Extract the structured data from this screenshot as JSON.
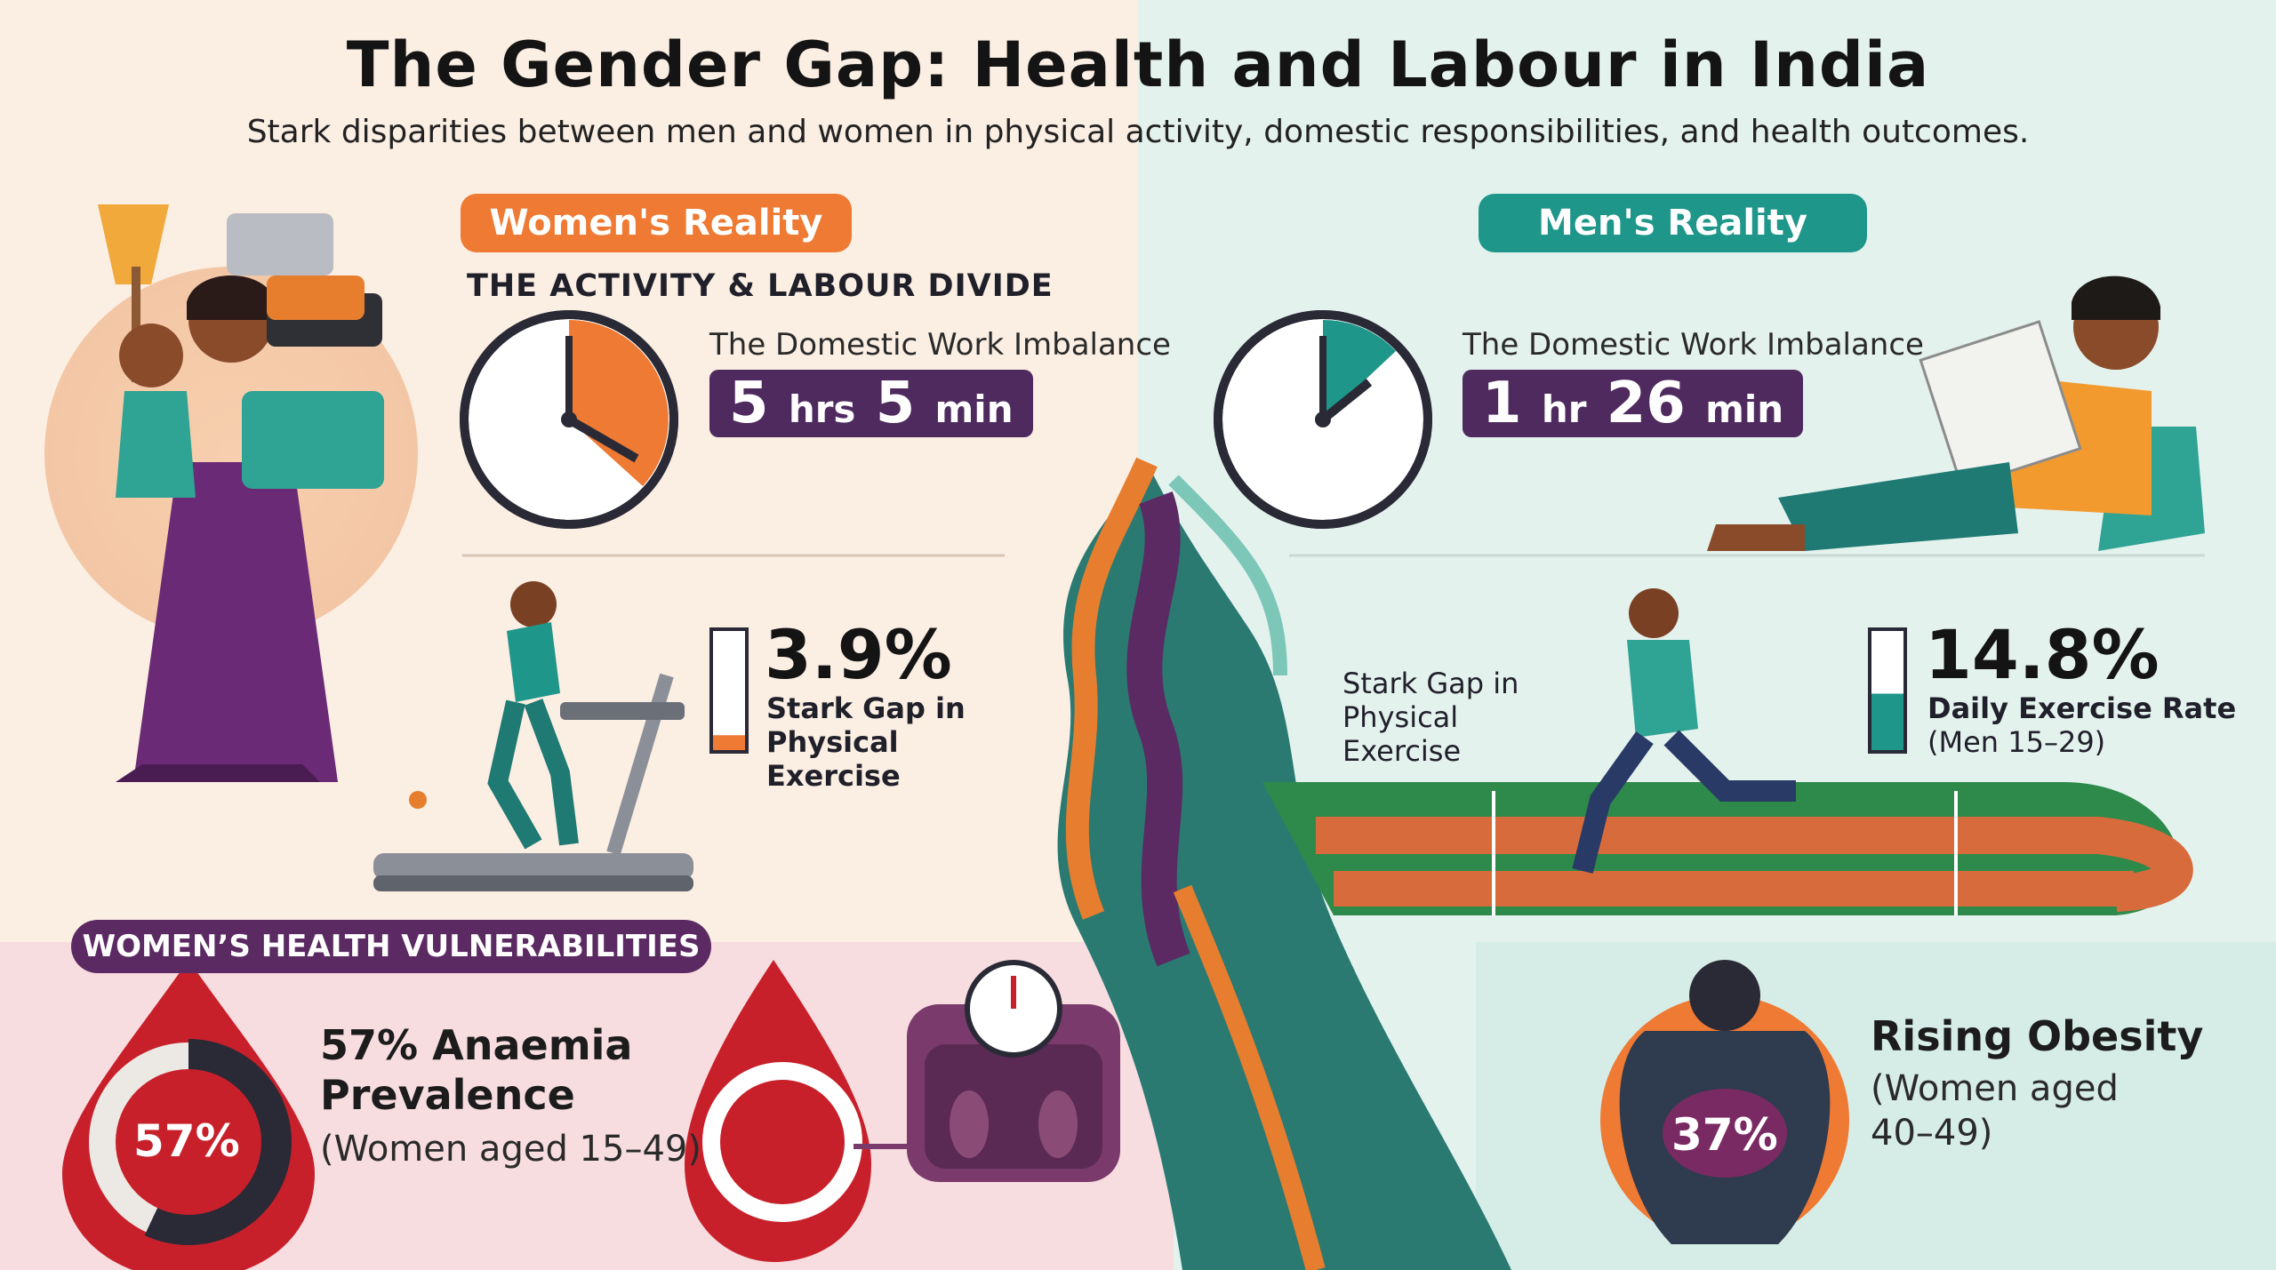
{
  "header": {
    "title": "The Gender Gap: Health and Labour in India",
    "subtitle": "Stark disparities between men and women in physical activity, domestic responsibilities, and health outcomes."
  },
  "women": {
    "badge": "Women's Reality",
    "section_title": "THE ACTIVITY & LABOUR DIVIDE",
    "domestic_label": "The Domestic Work Imbalance",
    "domestic_hours": "5",
    "hours_unit": "hrs",
    "domestic_minutes": "5",
    "minutes_unit": "min",
    "exercise_value": "3.9%",
    "exercise_fraction": 0.039,
    "exercise_caption": "Stark Gap in Physical Exercise"
  },
  "men": {
    "badge": "Men's Reality",
    "domestic_label": "The Domestic Work Imbalance",
    "domestic_hours": "1",
    "hours_unit": "hr",
    "domestic_minutes": "26",
    "minutes_unit": "min",
    "exercise_side_label": "Stark Gap in Physical Exercise",
    "exercise_value": "14.8%",
    "exercise_fraction": 0.148,
    "exercise_caption": "Daily Exercise Rate",
    "exercise_group": "(Men 15–29)"
  },
  "health": {
    "section_badge": "WOMEN’S HEALTH VULNERABILITIES",
    "anaemia_ring_value": "57%",
    "anaemia_fraction": 0.57,
    "anaemia_title": "57% Anaemia Prevalence",
    "anaemia_group": "(Women aged 15–49)",
    "obesity_ring_value": "37%",
    "obesity_fraction": 0.37,
    "obesity_title": "Rising Obesity",
    "obesity_group": "(Women aged 40–49)"
  },
  "colors": {
    "women_accent": "#ee7a33",
    "men_accent": "#1f968a",
    "purple": "#4e2a5e",
    "blood_red": "#c8202a"
  },
  "icons": [
    "clock-icon",
    "stopwatch-icon",
    "blood-drop-icon",
    "weighing-scale-icon",
    "body-silhouette-icon",
    "thermometer-gauge-icon"
  ]
}
